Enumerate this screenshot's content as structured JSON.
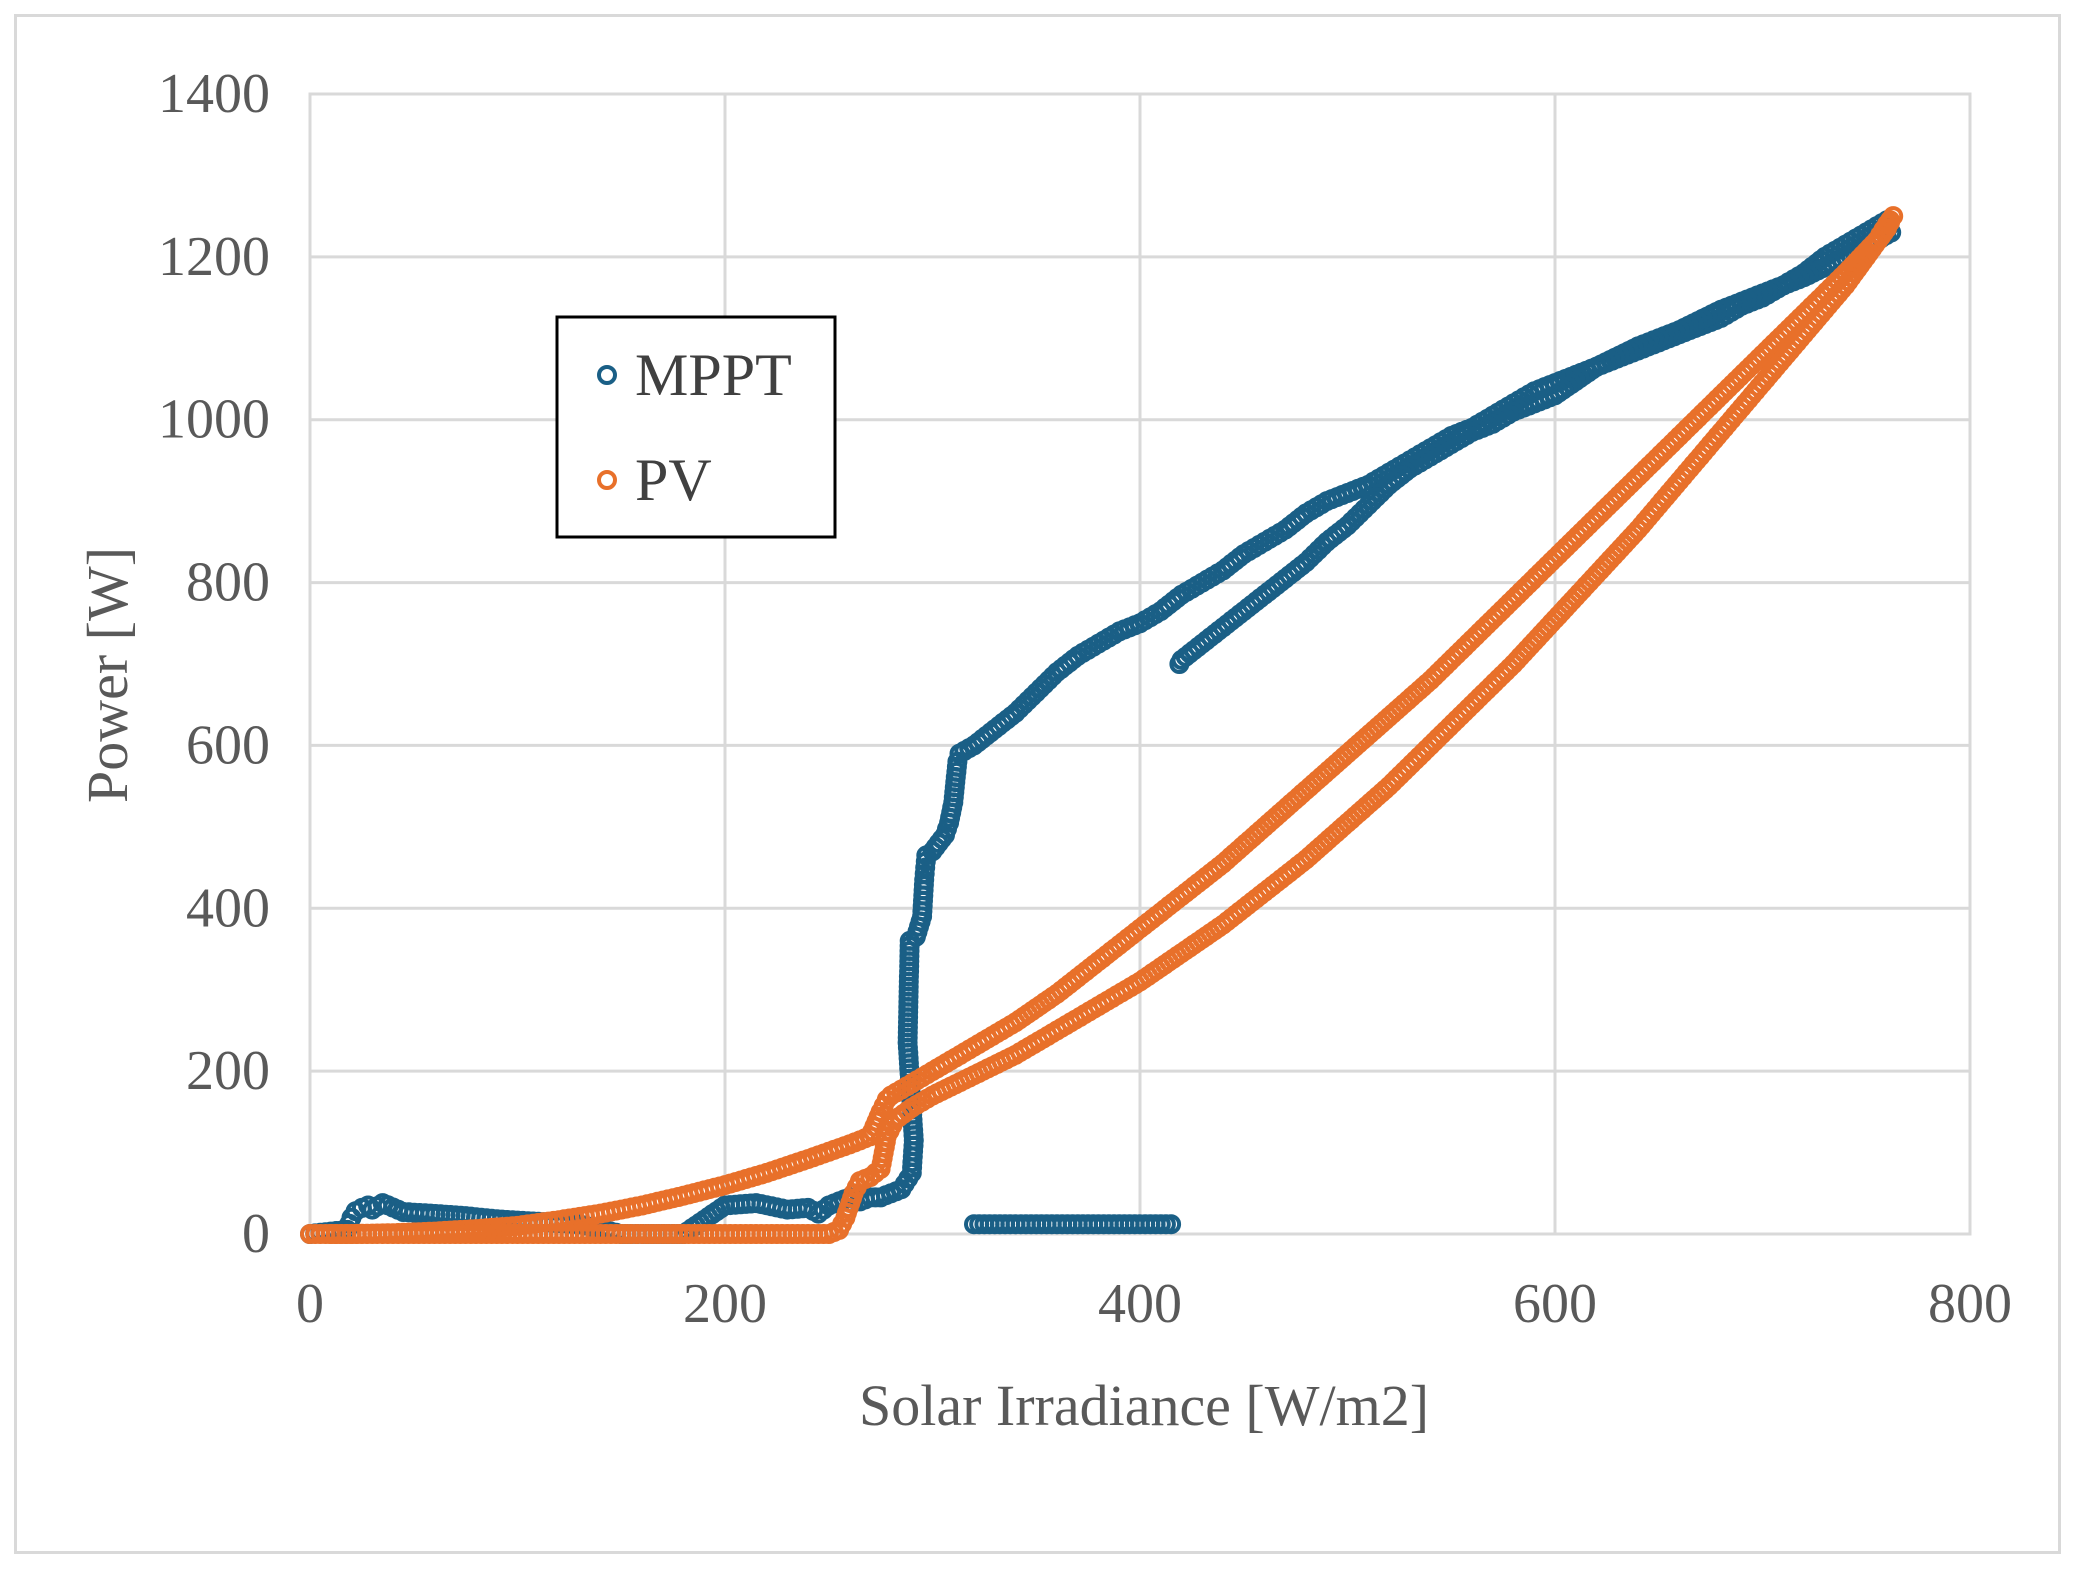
{
  "chart_data": {
    "type": "scatter",
    "title": "",
    "xlabel": "Solar Irradiance [W/m2]",
    "ylabel": "Power [W]",
    "xlim": [
      0,
      800
    ],
    "ylim": [
      0,
      1400
    ],
    "xticks": [
      "0",
      "200",
      "400",
      "600",
      "800"
    ],
    "yticks": [
      "0",
      "200",
      "400",
      "600",
      "800",
      "1000",
      "1200",
      "1400"
    ],
    "grid": true,
    "legend_position": "upper-left",
    "series": [
      {
        "name": "MPPT",
        "color": "#1a5f86",
        "points": [
          [
            0,
            0
          ],
          [
            10,
            3
          ],
          [
            18,
            5
          ],
          [
            20,
            20
          ],
          [
            22,
            28
          ],
          [
            25,
            32
          ],
          [
            28,
            35
          ],
          [
            30,
            30
          ],
          [
            35,
            38
          ],
          [
            45,
            27
          ],
          [
            58,
            25
          ],
          [
            75,
            22
          ],
          [
            90,
            18
          ],
          [
            110,
            15
          ],
          [
            130,
            12
          ],
          [
            150,
            0
          ],
          [
            165,
            0
          ],
          [
            180,
            0
          ],
          [
            200,
            35
          ],
          [
            215,
            38
          ],
          [
            230,
            30
          ],
          [
            240,
            32
          ],
          [
            245,
            25
          ],
          [
            250,
            35
          ],
          [
            255,
            40
          ],
          [
            260,
            45
          ],
          [
            265,
            40
          ],
          [
            270,
            45
          ],
          [
            275,
            45
          ],
          [
            280,
            50
          ],
          [
            285,
            55
          ],
          [
            290,
            75
          ],
          [
            291,
            115
          ],
          [
            288,
            235
          ],
          [
            289,
            360
          ],
          [
            292,
            365
          ],
          [
            295,
            390
          ],
          [
            296,
            435
          ],
          [
            297,
            465
          ],
          [
            300,
            470
          ],
          [
            303,
            480
          ],
          [
            306,
            490
          ],
          [
            308,
            505
          ],
          [
            310,
            530
          ],
          [
            312,
            580
          ],
          [
            313,
            590
          ],
          [
            320,
            600
          ],
          [
            330,
            620
          ],
          [
            340,
            640
          ],
          [
            350,
            665
          ],
          [
            360,
            690
          ],
          [
            370,
            710
          ],
          [
            380,
            725
          ],
          [
            390,
            740
          ],
          [
            400,
            750
          ],
          [
            410,
            765
          ],
          [
            420,
            785
          ],
          [
            430,
            800
          ],
          [
            440,
            815
          ],
          [
            450,
            835
          ],
          [
            460,
            850
          ],
          [
            470,
            865
          ],
          [
            480,
            885
          ],
          [
            490,
            900
          ],
          [
            500,
            910
          ],
          [
            510,
            920
          ],
          [
            520,
            935
          ],
          [
            530,
            950
          ],
          [
            540,
            965
          ],
          [
            550,
            980
          ],
          [
            560,
            990
          ],
          [
            570,
            1005
          ],
          [
            580,
            1020
          ],
          [
            590,
            1035
          ],
          [
            600,
            1045
          ],
          [
            610,
            1055
          ],
          [
            620,
            1065
          ],
          [
            630,
            1075
          ],
          [
            640,
            1085
          ],
          [
            650,
            1095
          ],
          [
            660,
            1105
          ],
          [
            670,
            1115
          ],
          [
            680,
            1125
          ],
          [
            690,
            1140
          ],
          [
            700,
            1150
          ],
          [
            710,
            1165
          ],
          [
            720,
            1180
          ],
          [
            730,
            1200
          ],
          [
            740,
            1215
          ],
          [
            750,
            1230
          ],
          [
            760,
            1245
          ],
          [
            762,
            1230
          ],
          [
            755,
            1220
          ],
          [
            740,
            1200
          ],
          [
            720,
            1175
          ],
          [
            700,
            1155
          ],
          [
            680,
            1135
          ],
          [
            660,
            1110
          ],
          [
            640,
            1090
          ],
          [
            620,
            1065
          ],
          [
            600,
            1030
          ],
          [
            590,
            1020
          ],
          [
            580,
            1010
          ],
          [
            570,
            995
          ],
          [
            560,
            985
          ],
          [
            550,
            970
          ],
          [
            540,
            955
          ],
          [
            530,
            940
          ],
          [
            520,
            920
          ],
          [
            510,
            895
          ],
          [
            500,
            870
          ],
          [
            490,
            850
          ],
          [
            480,
            825
          ],
          [
            470,
            805
          ],
          [
            460,
            785
          ],
          [
            450,
            765
          ],
          [
            440,
            745
          ],
          [
            430,
            725
          ],
          [
            420,
            705
          ],
          [
            419,
            700
          ],
          [
            320,
            12
          ],
          [
            325,
            12
          ],
          [
            330,
            12
          ],
          [
            335,
            12
          ],
          [
            340,
            12
          ],
          [
            345,
            12
          ],
          [
            350,
            12
          ],
          [
            355,
            12
          ],
          [
            360,
            12
          ],
          [
            365,
            12
          ],
          [
            370,
            12
          ],
          [
            375,
            12
          ],
          [
            380,
            12
          ],
          [
            385,
            12
          ],
          [
            390,
            12
          ],
          [
            395,
            12
          ],
          [
            400,
            12
          ],
          [
            405,
            12
          ],
          [
            410,
            12
          ],
          [
            415,
            12
          ]
        ]
      },
      {
        "name": "PV",
        "color": "#e8702a",
        "points": [
          [
            0,
            0
          ],
          [
            20,
            0
          ],
          [
            40,
            1
          ],
          [
            60,
            3
          ],
          [
            80,
            6
          ],
          [
            100,
            10
          ],
          [
            120,
            17
          ],
          [
            140,
            25
          ],
          [
            160,
            35
          ],
          [
            180,
            47
          ],
          [
            200,
            60
          ],
          [
            220,
            75
          ],
          [
            240,
            92
          ],
          [
            260,
            110
          ],
          [
            270,
            120
          ],
          [
            275,
            150
          ],
          [
            278,
            165
          ],
          [
            280,
            170
          ],
          [
            290,
            185
          ],
          [
            300,
            200
          ],
          [
            320,
            230
          ],
          [
            340,
            260
          ],
          [
            360,
            295
          ],
          [
            380,
            335
          ],
          [
            400,
            375
          ],
          [
            420,
            415
          ],
          [
            440,
            455
          ],
          [
            460,
            500
          ],
          [
            480,
            545
          ],
          [
            500,
            590
          ],
          [
            520,
            635
          ],
          [
            540,
            680
          ],
          [
            560,
            730
          ],
          [
            580,
            780
          ],
          [
            600,
            830
          ],
          [
            620,
            880
          ],
          [
            640,
            930
          ],
          [
            660,
            980
          ],
          [
            680,
            1030
          ],
          [
            700,
            1080
          ],
          [
            720,
            1130
          ],
          [
            740,
            1180
          ],
          [
            755,
            1220
          ],
          [
            760,
            1240
          ],
          [
            763,
            1250
          ],
          [
            760,
            1235
          ],
          [
            750,
            1200
          ],
          [
            740,
            1165
          ],
          [
            720,
            1105
          ],
          [
            700,
            1045
          ],
          [
            680,
            985
          ],
          [
            660,
            925
          ],
          [
            640,
            865
          ],
          [
            620,
            810
          ],
          [
            600,
            755
          ],
          [
            580,
            700
          ],
          [
            560,
            650
          ],
          [
            540,
            600
          ],
          [
            520,
            550
          ],
          [
            500,
            505
          ],
          [
            480,
            460
          ],
          [
            460,
            420
          ],
          [
            440,
            380
          ],
          [
            420,
            345
          ],
          [
            400,
            310
          ],
          [
            380,
            280
          ],
          [
            360,
            250
          ],
          [
            340,
            220
          ],
          [
            320,
            195
          ],
          [
            300,
            170
          ],
          [
            290,
            155
          ],
          [
            282,
            140
          ],
          [
            278,
            120
          ],
          [
            275,
            80
          ],
          [
            270,
            70
          ],
          [
            265,
            65
          ],
          [
            262,
            50
          ],
          [
            258,
            20
          ],
          [
            255,
            5
          ],
          [
            250,
            0
          ],
          [
            240,
            0
          ],
          [
            225,
            0
          ],
          [
            210,
            0
          ],
          [
            190,
            0
          ],
          [
            170,
            0
          ],
          [
            150,
            0
          ],
          [
            130,
            0
          ],
          [
            110,
            0
          ],
          [
            90,
            0
          ],
          [
            70,
            0
          ],
          [
            50,
            0
          ],
          [
            30,
            0
          ],
          [
            10,
            0
          ]
        ]
      }
    ]
  }
}
